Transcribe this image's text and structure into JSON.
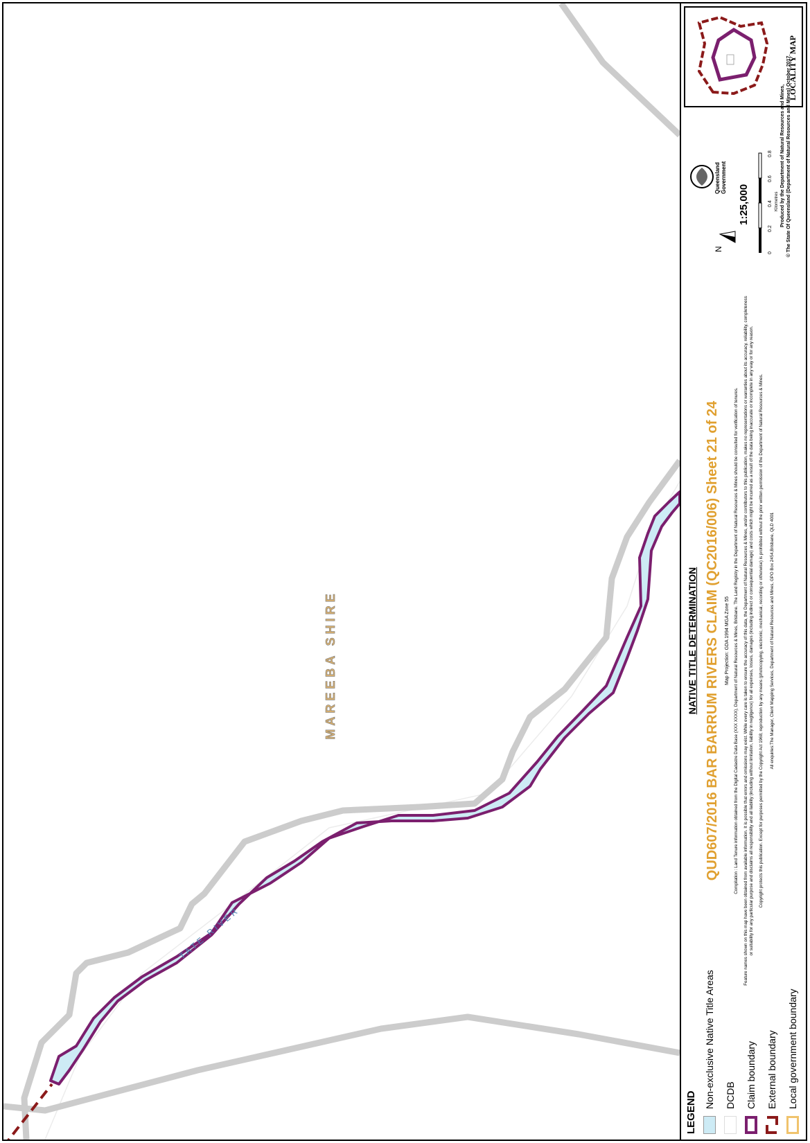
{
  "map": {
    "region_label": "MAREEBA SHIRE",
    "river_label": "TATE RIVER",
    "colors": {
      "native_title_fill": "#CDEBF5",
      "claim_boundary": "#7B1F6E",
      "external_boundary": "#8B1A1A",
      "road": "#CCCCCC",
      "dcdb": "#E6E6E6",
      "local_government": "#F0C36D"
    }
  },
  "legend": {
    "title": "LEGEND",
    "items": [
      {
        "label": "Non-exclusive Native Title Areas",
        "symbol": "filled-light-blue"
      },
      {
        "label": "DCDB",
        "symbol": "white-box"
      },
      {
        "label": "Claim boundary",
        "symbol": "purple-outline"
      },
      {
        "label": "External boundary",
        "symbol": "dark-red-outline"
      },
      {
        "label": "Local government boundary",
        "symbol": "gold-outline"
      }
    ]
  },
  "titles": {
    "determination": "NATIVE TITLE DETERMINATION",
    "sheet_title": "QUD607/2016 BAR BARRUM RIVERS CLAIM (QC2016/006) Sheet 21 of 24",
    "projection": "Map Projection: GDA 1994 MGA Zone 55",
    "compilation": "Compilation : Land Tenure information obtained from the Digital Cadastre Data Base (XXX XXXX), Department of Natural Resources & Mines, Brisbane. The Land Registry in the Department of Natural Resources & Mines should be consulted for verification of tenures.",
    "disclaimer": "Feature names shown on this map have been obtained from available information. It is possible that errors and omissions may exist. While every care is taken to ensure the accuracy of this data, the Department of Natural Resources & Mines, and/or contributors to this publication, makes no representations or warranties about its accuracy, reliability, completeness or suitability for any particular purpose and disclaims all responsibility and all liability (including without limitation, liability in negligence) for all expenses, losses, damages (including indirect or consequential damage) and costs which might be incurred as a result of the data being inaccurate or incomplete in any way or for any reason.",
    "copyright": "Copyright protects this publication. Except for purposes permitted by the Copyright Act 1968, reproduction by any means (photocopying, electronic, mechanical, recording or otherwise) is prohibited without the prior written permission of the Department of Natural Resources & Mines.",
    "enquiries": "All enquiries:The Manager, Client Mapping Services, Department of Natural Resources and Mines, GPO Box 2454,Brisbane, QLD 4001"
  },
  "scale": {
    "ratio": "1:25,000",
    "ticks": [
      "0",
      "0.2",
      "0.4",
      "0.6",
      "0.8"
    ],
    "unit": "Kilometres",
    "north": "N"
  },
  "government": {
    "name_line1": "Queensland",
    "name_line2": "Government"
  },
  "producer": {
    "line1": "Produced by the Department of Natural Resources and Mines,",
    "line2": "© The State Of Queensland (Department of Natural Resources and Mines) October 2017."
  },
  "locality_map": {
    "label": "LOCALITY MAP"
  }
}
